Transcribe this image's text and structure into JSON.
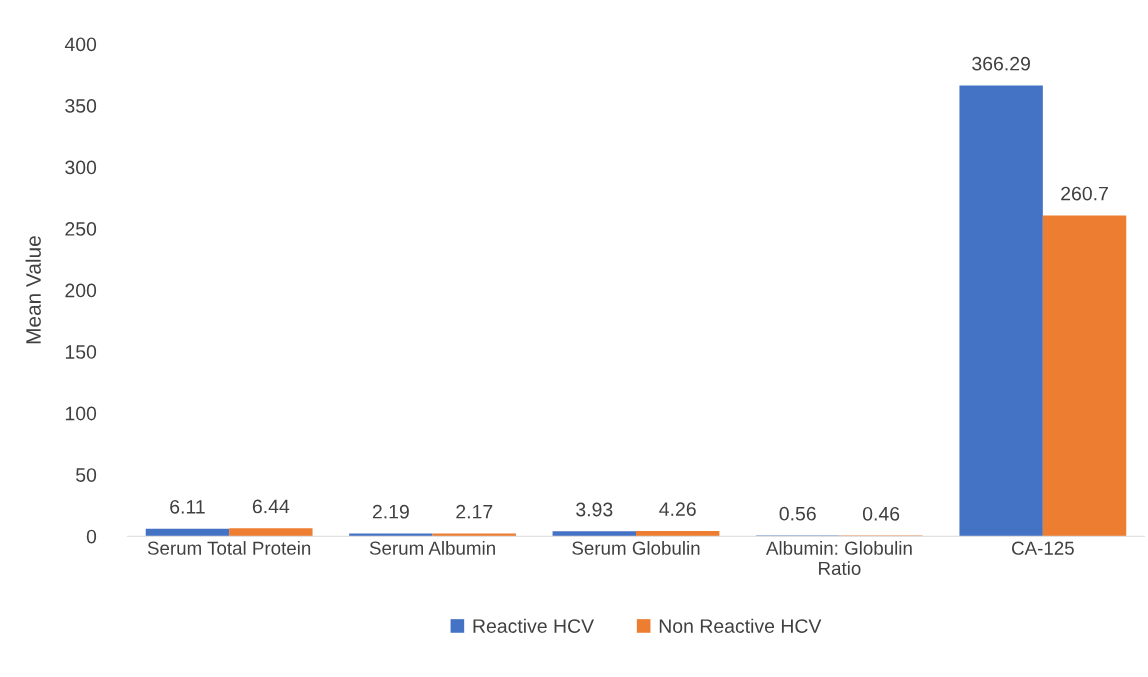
{
  "chart_data": {
    "type": "bar",
    "ylabel": "Mean Value",
    "categories": [
      "Serum Total Protein",
      "Serum Albumin",
      "Serum Globulin",
      "Albumin: Globulin Ratio",
      "CA-125"
    ],
    "series": [
      {
        "name": "Reactive HCV",
        "color": "#4472c4",
        "values": [
          6.11,
          2.19,
          3.93,
          0.56,
          366.29
        ]
      },
      {
        "name": "Non Reactive HCV",
        "color": "#ed7d31",
        "values": [
          6.44,
          2.17,
          4.26,
          0.46,
          260.7
        ]
      }
    ],
    "ylim": [
      0,
      400
    ],
    "yticks": [
      0,
      50,
      100,
      150,
      200,
      250,
      300,
      350,
      400
    ],
    "data_labels": true,
    "grid": false,
    "legend": "bottom"
  }
}
